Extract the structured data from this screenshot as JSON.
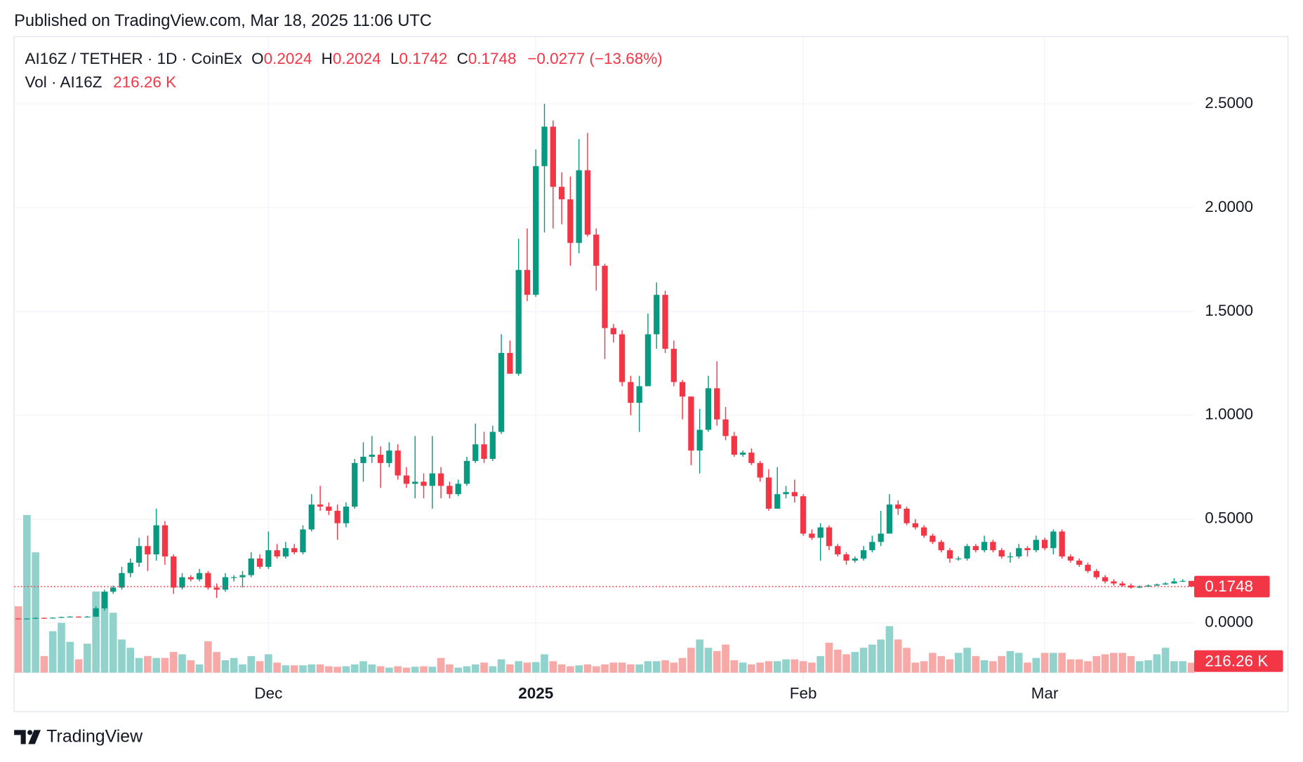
{
  "chart_data": {
    "type": "candlestick",
    "published": "Published on TradingView.com, Mar 18, 2025 11:06 UTC",
    "title": "AI16Z / TETHER · 1D · CoinEx",
    "ohlc_labels": [
      "O",
      "H",
      "L",
      "C"
    ],
    "change": {
      "value": -0.0277,
      "label": "−0.0277"
    },
    "change_percent": {
      "value": -13.68,
      "label": "(−13.68%)"
    },
    "brand": "TradingView",
    "up_color": "#089981",
    "down_color": "#f23645",
    "grid": true,
    "ylim": [
      -0.24,
      2.82
    ],
    "yticks": [
      {
        "value": 0,
        "label": "0.0000"
      },
      {
        "value": 0.5,
        "label": "0.5000"
      },
      {
        "value": 1,
        "label": "1.0000"
      },
      {
        "value": 1.5,
        "label": "1.5000"
      },
      {
        "value": 2,
        "label": "2.0000"
      },
      {
        "value": 2.5,
        "label": "2.5000"
      }
    ],
    "categories": [
      null,
      null,
      null,
      null,
      null,
      null,
      null,
      null,
      null,
      null,
      null,
      null,
      null,
      null,
      null,
      null,
      null,
      null,
      null,
      null,
      null,
      null,
      null,
      null,
      null,
      null,
      null,
      null,
      null,
      "Dec",
      null,
      null,
      null,
      null,
      null,
      null,
      null,
      null,
      null,
      null,
      null,
      null,
      null,
      null,
      null,
      null,
      null,
      null,
      null,
      null,
      null,
      null,
      null,
      null,
      null,
      null,
      null,
      null,
      null,
      null,
      "2025",
      null,
      null,
      null,
      null,
      null,
      null,
      null,
      null,
      null,
      null,
      null,
      null,
      null,
      null,
      null,
      null,
      null,
      null,
      null,
      null,
      null,
      null,
      null,
      null,
      null,
      null,
      null,
      null,
      null,
      null,
      "Feb",
      null,
      null,
      null,
      null,
      null,
      null,
      null,
      null,
      null,
      null,
      null,
      null,
      null,
      null,
      null,
      null,
      null,
      null,
      null,
      null,
      null,
      null,
      null,
      null,
      null,
      null,
      null,
      "Mar",
      null,
      null,
      null,
      null,
      null,
      null,
      null,
      null,
      null,
      null,
      null,
      null,
      null,
      null,
      null,
      null,
      null
    ],
    "open": [
      0.021,
      0.02,
      0.021,
      0.024,
      0.022,
      0.025,
      0.028,
      0.03,
      0.027,
      0.03,
      0.07,
      0.15,
      0.17,
      0.24,
      0.29,
      0.37,
      0.33,
      0.47,
      0.32,
      0.17,
      0.22,
      0.21,
      0.24,
      0.17,
      0.16,
      0.22,
      0.22,
      0.23,
      0.31,
      0.27,
      0.35,
      0.32,
      0.36,
      0.34,
      0.45,
      0.57,
      0.56,
      0.54,
      0.48,
      0.56,
      0.77,
      0.8,
      0.81,
      0.77,
      0.83,
      0.71,
      0.67,
      0.68,
      0.66,
      0.72,
      0.66,
      0.62,
      0.67,
      0.78,
      0.86,
      0.79,
      0.92,
      1.3,
      1.2,
      1.7,
      1.58,
      2.2,
      2.39,
      2.1,
      2.04,
      1.83,
      2.18,
      1.87,
      1.72,
      1.42,
      1.39,
      1.16,
      1.06,
      1.14,
      1.39,
      1.58,
      1.32,
      1.16,
      1.09,
      0.83,
      0.93,
      1.13,
      0.98,
      0.9,
      0.81,
      0.82,
      0.77,
      0.7,
      0.55,
      0.62,
      0.63,
      0.61,
      0.43,
      0.41,
      0.46,
      0.37,
      0.33,
      0.3,
      0.31,
      0.35,
      0.39,
      0.43,
      0.57,
      0.55,
      0.48,
      0.46,
      0.42,
      0.39,
      0.35,
      0.31,
      0.31,
      0.37,
      0.35,
      0.39,
      0.35,
      0.32,
      0.32,
      0.36,
      0.35,
      0.4,
      0.36,
      0.44,
      0.32,
      0.3,
      0.28,
      0.25,
      0.22,
      0.2,
      0.19,
      0.18,
      0.17,
      0.175,
      0.18,
      0.185,
      0.19,
      0.2,
      0.2024
    ],
    "high": [
      0.023,
      0.023,
      0.026,
      0.026,
      0.027,
      0.03,
      0.032,
      0.032,
      0.033,
      0.08,
      0.16,
      0.18,
      0.27,
      0.31,
      0.41,
      0.42,
      0.55,
      0.49,
      0.33,
      0.24,
      0.23,
      0.26,
      0.25,
      0.19,
      0.24,
      0.23,
      0.25,
      0.34,
      0.33,
      0.44,
      0.38,
      0.39,
      0.38,
      0.47,
      0.62,
      0.66,
      0.58,
      0.57,
      0.58,
      0.79,
      0.87,
      0.9,
      0.85,
      0.87,
      0.86,
      0.75,
      0.9,
      0.72,
      0.9,
      0.75,
      0.68,
      0.69,
      0.8,
      0.96,
      0.92,
      0.95,
      1.39,
      1.36,
      1.85,
      1.9,
      2.28,
      2.5,
      2.42,
      2.17,
      2.15,
      2.33,
      2.36,
      1.9,
      1.73,
      1.44,
      1.41,
      1.19,
      1.19,
      1.49,
      1.64,
      1.6,
      1.36,
      1.17,
      1.09,
      1.03,
      1.19,
      1.26,
      1.04,
      0.92,
      0.83,
      0.84,
      0.78,
      0.74,
      0.75,
      0.66,
      0.69,
      0.62,
      0.45,
      0.48,
      0.47,
      0.38,
      0.34,
      0.32,
      0.37,
      0.42,
      0.54,
      0.62,
      0.59,
      0.56,
      0.5,
      0.47,
      0.43,
      0.4,
      0.36,
      0.32,
      0.38,
      0.38,
      0.42,
      0.4,
      0.36,
      0.34,
      0.38,
      0.37,
      0.42,
      0.41,
      0.45,
      0.45,
      0.33,
      0.31,
      0.29,
      0.26,
      0.23,
      0.21,
      0.2,
      0.19,
      0.18,
      0.185,
      0.19,
      0.196,
      0.215,
      0.21,
      0.2024
    ],
    "low": [
      0.018,
      0.019,
      0.02,
      0.021,
      0.021,
      0.024,
      0.027,
      0.025,
      0.026,
      0.029,
      0.06,
      0.14,
      0.16,
      0.22,
      0.27,
      0.25,
      0.3,
      0.28,
      0.14,
      0.16,
      0.2,
      0.2,
      0.16,
      0.12,
      0.15,
      0.2,
      0.17,
      0.22,
      0.26,
      0.26,
      0.31,
      0.31,
      0.33,
      0.33,
      0.44,
      0.54,
      0.52,
      0.4,
      0.46,
      0.55,
      0.68,
      0.77,
      0.65,
      0.75,
      0.69,
      0.65,
      0.6,
      0.6,
      0.55,
      0.6,
      0.6,
      0.61,
      0.66,
      0.77,
      0.77,
      0.78,
      0.91,
      1.2,
      1.19,
      1.55,
      1.57,
      1.88,
      1.9,
      1.92,
      1.72,
      1.78,
      1.86,
      1.6,
      1.27,
      1.35,
      1.14,
      1.0,
      0.92,
      1.14,
      1.32,
      1.3,
      1.14,
      0.98,
      0.76,
      0.72,
      0.92,
      0.95,
      0.88,
      0.8,
      0.8,
      0.76,
      0.68,
      0.54,
      0.55,
      0.6,
      0.58,
      0.42,
      0.4,
      0.3,
      0.35,
      0.32,
      0.28,
      0.29,
      0.3,
      0.34,
      0.37,
      0.43,
      0.52,
      0.47,
      0.45,
      0.41,
      0.38,
      0.34,
      0.29,
      0.3,
      0.3,
      0.34,
      0.34,
      0.34,
      0.31,
      0.29,
      0.31,
      0.32,
      0.34,
      0.35,
      0.33,
      0.31,
      0.29,
      0.27,
      0.24,
      0.21,
      0.19,
      0.18,
      0.175,
      0.165,
      0.168,
      0.172,
      0.178,
      0.183,
      0.188,
      0.197,
      0.1742
    ],
    "close": [
      0.02,
      0.021,
      0.024,
      0.022,
      0.025,
      0.028,
      0.03,
      0.027,
      0.03,
      0.07,
      0.15,
      0.17,
      0.24,
      0.29,
      0.37,
      0.33,
      0.47,
      0.32,
      0.17,
      0.22,
      0.21,
      0.24,
      0.17,
      0.16,
      0.22,
      0.22,
      0.23,
      0.31,
      0.27,
      0.35,
      0.32,
      0.36,
      0.34,
      0.45,
      0.57,
      0.56,
      0.54,
      0.48,
      0.56,
      0.77,
      0.8,
      0.81,
      0.77,
      0.83,
      0.71,
      0.67,
      0.68,
      0.66,
      0.72,
      0.66,
      0.62,
      0.67,
      0.78,
      0.86,
      0.79,
      0.92,
      1.3,
      1.2,
      1.7,
      1.58,
      2.2,
      2.39,
      2.1,
      2.04,
      1.83,
      2.18,
      1.87,
      1.72,
      1.42,
      1.39,
      1.16,
      1.06,
      1.14,
      1.39,
      1.58,
      1.32,
      1.16,
      1.09,
      0.83,
      0.93,
      1.13,
      0.98,
      0.9,
      0.81,
      0.82,
      0.77,
      0.7,
      0.55,
      0.62,
      0.63,
      0.61,
      0.43,
      0.41,
      0.46,
      0.37,
      0.33,
      0.3,
      0.31,
      0.35,
      0.39,
      0.43,
      0.57,
      0.55,
      0.48,
      0.46,
      0.42,
      0.39,
      0.35,
      0.31,
      0.31,
      0.37,
      0.35,
      0.39,
      0.35,
      0.32,
      0.32,
      0.36,
      0.35,
      0.4,
      0.36,
      0.44,
      0.32,
      0.3,
      0.28,
      0.25,
      0.22,
      0.2,
      0.19,
      0.18,
      0.17,
      0.175,
      0.18,
      0.185,
      0.19,
      0.2,
      0.2024,
      0.1748
    ],
    "volume": {
      "name": "Vol · AI16Z",
      "last_value_label": "216.26 K",
      "up_color": "#92d2cc",
      "down_color": "#f7a9a7",
      "values": [
        1440,
        3420,
        2610,
        360,
        900,
        1080,
        670,
        290,
        630,
        1760,
        1760,
        1300,
        720,
        540,
        320,
        360,
        320,
        320,
        450,
        400,
        270,
        180,
        680,
        450,
        270,
        320,
        180,
        360,
        250,
        400,
        220,
        160,
        160,
        160,
        180,
        180,
        140,
        130,
        140,
        180,
        250,
        180,
        140,
        110,
        140,
        110,
        130,
        140,
        130,
        320,
        180,
        110,
        140,
        180,
        220,
        140,
        290,
        180,
        250,
        220,
        230,
        400,
        250,
        180,
        140,
        160,
        180,
        140,
        180,
        220,
        220,
        180,
        180,
        250,
        250,
        270,
        220,
        320,
        540,
        720,
        540,
        470,
        610,
        270,
        220,
        180,
        220,
        250,
        250,
        290,
        290,
        250,
        220,
        360,
        650,
        500,
        400,
        450,
        540,
        610,
        720,
        1010,
        720,
        540,
        220,
        250,
        430,
        360,
        290,
        430,
        540,
        360,
        270,
        250,
        360,
        470,
        430,
        220,
        320,
        430,
        430,
        430,
        290,
        290,
        250,
        360,
        400,
        430,
        430,
        360,
        250,
        270,
        400,
        540,
        250,
        250,
        216.26
      ]
    }
  }
}
